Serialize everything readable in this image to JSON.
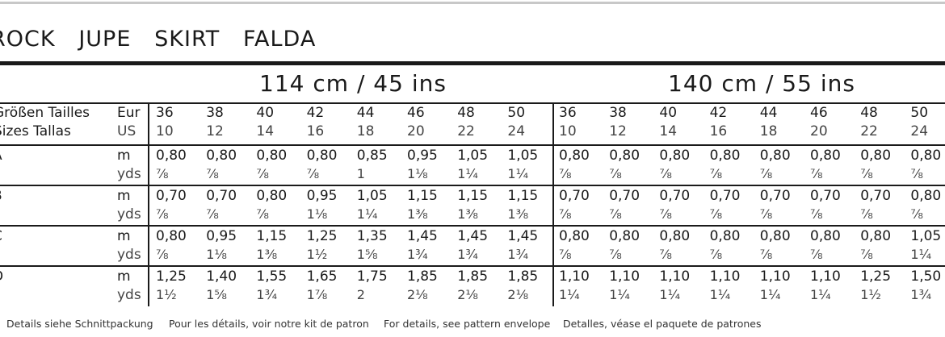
{
  "title": "ROCK   JUPE   SKIRT   FALDA",
  "widths": [
    "114 cm / 45 ins",
    "140 cm / 55 ins"
  ],
  "header": {
    "labels": [
      "Größen Tailles",
      "Sizes Tallas"
    ],
    "eur": "Eur",
    "us": "US",
    "eur_sizes": [
      "36",
      "38",
      "40",
      "42",
      "44",
      "46",
      "48",
      "50",
      "36",
      "38",
      "40",
      "42",
      "44",
      "46",
      "48",
      "50"
    ],
    "us_sizes": [
      "10",
      "12",
      "14",
      "16",
      "18",
      "20",
      "22",
      "24",
      "10",
      "12",
      "14",
      "16",
      "18",
      "20",
      "22",
      "24"
    ]
  },
  "rows": [
    {
      "label": "A",
      "unit_m": "m",
      "unit_yds": "yds",
      "m": [
        "0,80",
        "0,80",
        "0,80",
        "0,80",
        "0,85",
        "0,95",
        "1,05",
        "1,05",
        "0,80",
        "0,80",
        "0,80",
        "0,80",
        "0,80",
        "0,80",
        "0,80",
        "0,80"
      ],
      "yds": [
        "⅞",
        "⅞",
        "⅞",
        "⅞",
        "1",
        "1⅛",
        "1¼",
        "1¼",
        "⅞",
        "⅞",
        "⅞",
        "⅞",
        "⅞",
        "⅞",
        "⅞",
        "⅞"
      ]
    },
    {
      "label": "B",
      "unit_m": "m",
      "unit_yds": "yds",
      "m": [
        "0,70",
        "0,70",
        "0,80",
        "0,95",
        "1,05",
        "1,15",
        "1,15",
        "1,15",
        "0,70",
        "0,70",
        "0,70",
        "0,70",
        "0,70",
        "0,70",
        "0,70",
        "0,80"
      ],
      "yds": [
        "⅞",
        "⅞",
        "⅞",
        "1⅛",
        "1¼",
        "1⅜",
        "1⅜",
        "1⅜",
        "⅞",
        "⅞",
        "⅞",
        "⅞",
        "⅞",
        "⅞",
        "⅞",
        "⅞"
      ]
    },
    {
      "label": "C",
      "unit_m": "m",
      "unit_yds": "yds",
      "m": [
        "0,80",
        "0,95",
        "1,15",
        "1,25",
        "1,35",
        "1,45",
        "1,45",
        "1,45",
        "0,80",
        "0,80",
        "0,80",
        "0,80",
        "0,80",
        "0,80",
        "0,80",
        "1,05"
      ],
      "yds": [
        "⅞",
        "1⅛",
        "1⅜",
        "1½",
        "1⅝",
        "1¾",
        "1¾",
        "1¾",
        "⅞",
        "⅞",
        "⅞",
        "⅞",
        "⅞",
        "⅞",
        "⅞",
        "1¼"
      ]
    },
    {
      "label": "D",
      "unit_m": "m",
      "unit_yds": "yds",
      "m": [
        "1,25",
        "1,40",
        "1,55",
        "1,65",
        "1,75",
        "1,85",
        "1,85",
        "1,85",
        "1,10",
        "1,10",
        "1,10",
        "1,10",
        "1,10",
        "1,10",
        "1,25",
        "1,50"
      ],
      "yds": [
        "1½",
        "1⅝",
        "1¾",
        "1⅞",
        "2",
        "2⅛",
        "2⅛",
        "2⅛",
        "1¼",
        "1¼",
        "1¼",
        "1¼",
        "1¼",
        "1¼",
        "1½",
        "1¾"
      ]
    }
  ],
  "footer": [
    "Details siehe Schnittpackung",
    "Pour les détails, voir notre kit de patron",
    "For details, see pattern envelope",
    "Detalles, véase el paquete de patrones"
  ]
}
